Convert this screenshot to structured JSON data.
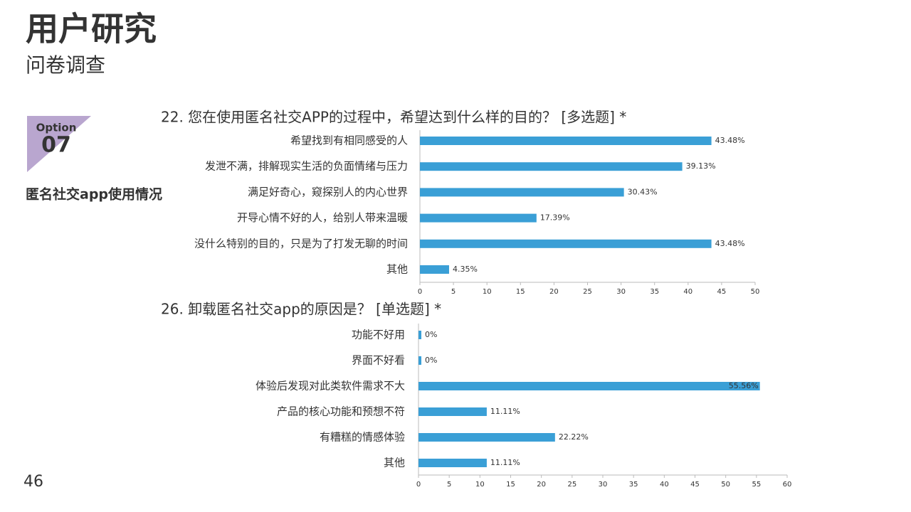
{
  "header": {
    "title": "用户研究",
    "subtitle": "问卷调查"
  },
  "section": {
    "option_label": "Option",
    "option_number": "07",
    "heading": "匿名社交app使用情况"
  },
  "page_number": 46,
  "chart_data": [
    {
      "type": "bar",
      "orientation": "horizontal",
      "title": "22. 您在使用匿名社交APP的过程中，希望达到什么样的目的？  [多选题] *",
      "categories": [
        "希望找到有相同感受的人",
        "发泄不满，排解现实生活的负面情绪与压力",
        "满足好奇心，窥探别人的内心世界",
        "开导心情不好的人，给别人带来温暖",
        "没什么特别的目的，只是为了打发无聊的时间",
        "其他"
      ],
      "values": [
        43.48,
        39.13,
        30.43,
        17.39,
        43.48,
        4.35
      ],
      "value_labels": [
        "43.48%",
        "39.13%",
        "30.43%",
        "17.39%",
        "43.48%",
        "4.35%"
      ],
      "color": "#3a9fd6",
      "xlim": [
        0,
        50
      ],
      "xticks": [
        0,
        5,
        10,
        15,
        20,
        25,
        30,
        35,
        40,
        45,
        50
      ]
    },
    {
      "type": "bar",
      "orientation": "horizontal",
      "title": "26. 卸载匿名社交app的原因是？  [单选题] *",
      "categories": [
        "功能不好用",
        "界面不好看",
        "体验后发现对此类软件需求不大",
        "产品的核心功能和预想不符",
        "有糟糕的情感体验",
        "其他"
      ],
      "values": [
        0,
        0,
        55.56,
        11.11,
        22.22,
        11.11
      ],
      "value_labels": [
        "0%",
        "0%",
        "55.56%",
        "11.11%",
        "22.22%",
        "11.11%"
      ],
      "color": "#3a9fd6",
      "xlim": [
        0,
        60
      ],
      "xticks": [
        0,
        5,
        10,
        15,
        20,
        25,
        30,
        35,
        40,
        45,
        50,
        55,
        60
      ]
    }
  ]
}
